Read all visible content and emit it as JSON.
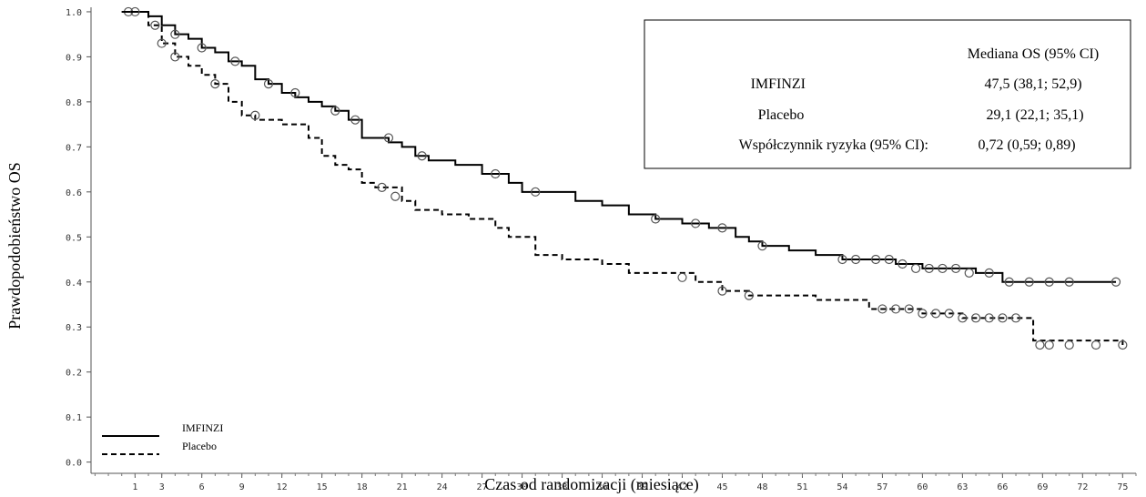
{
  "chart_data": {
    "type": "step",
    "ylabel": "Prawdopodobieństwo OS",
    "xlabel": "Czas od randomizacji (miesiące)",
    "xlim": [
      -2.3,
      76
    ],
    "ylim": [
      -0.025,
      1.01
    ],
    "xticks": [
      1,
      3,
      6,
      9,
      12,
      15,
      18,
      21,
      24,
      27,
      30,
      33,
      36,
      39,
      42,
      45,
      48,
      51,
      54,
      57,
      60,
      63,
      66,
      69,
      72,
      75
    ],
    "yticks": [
      {
        "value": 0,
        "label": "0.0"
      },
      0.1,
      0.2,
      0.3,
      0.4,
      0.5,
      0.6,
      0.7,
      0.8,
      0.9,
      {
        "value": 1,
        "label": "1.0"
      }
    ],
    "series": [
      {
        "name": "IMFINZI",
        "color": "#000000",
        "dash": "none",
        "x": [
          0,
          2,
          3,
          4,
          5,
          6,
          7,
          8,
          9,
          10,
          11,
          12,
          13,
          14,
          15,
          16,
          17,
          18,
          19,
          20,
          21,
          22,
          23,
          25,
          27,
          29,
          30,
          32,
          34,
          36,
          38,
          40,
          42,
          44,
          46,
          47,
          48,
          50,
          52,
          54,
          57,
          58,
          60,
          64,
          66,
          74.5
        ],
        "values": [
          1.0,
          0.99,
          0.97,
          0.95,
          0.94,
          0.92,
          0.91,
          0.89,
          0.88,
          0.85,
          0.84,
          0.82,
          0.81,
          0.8,
          0.79,
          0.78,
          0.76,
          0.72,
          0.72,
          0.71,
          0.7,
          0.68,
          0.67,
          0.66,
          0.64,
          0.62,
          0.6,
          0.6,
          0.58,
          0.57,
          0.55,
          0.54,
          0.53,
          0.52,
          0.5,
          0.49,
          0.48,
          0.47,
          0.46,
          0.45,
          0.45,
          0.44,
          0.43,
          0.42,
          0.4,
          0.4
        ],
        "censor_x": [
          0.5,
          1,
          4,
          6,
          8.5,
          11,
          13,
          16,
          17.5,
          20,
          22.5,
          28,
          31,
          40,
          43,
          45,
          48,
          54,
          55,
          56.5,
          57.5,
          58.5,
          59.5,
          60.5,
          61.5,
          62.5,
          63.5,
          65,
          66.5,
          68,
          69.5,
          71,
          74.5
        ],
        "censor_values": [
          1.0,
          1.0,
          0.95,
          0.92,
          0.89,
          0.84,
          0.82,
          0.78,
          0.76,
          0.72,
          0.68,
          0.64,
          0.6,
          0.54,
          0.53,
          0.52,
          0.48,
          0.45,
          0.45,
          0.45,
          0.45,
          0.44,
          0.43,
          0.43,
          0.43,
          0.43,
          0.42,
          0.42,
          0.4,
          0.4,
          0.4,
          0.4,
          0.4
        ]
      },
      {
        "name": "Placebo",
        "color": "#000000",
        "dash": "6,4",
        "x": [
          0,
          2,
          3,
          4,
          5,
          6,
          7,
          8,
          9,
          10,
          12,
          14,
          15,
          16,
          17,
          18,
          19,
          21,
          22,
          24,
          26,
          28,
          29,
          31,
          33,
          36,
          38,
          41,
          43,
          45,
          47,
          52,
          56,
          60,
          63,
          68,
          68.3,
          75
        ],
        "values": [
          1.0,
          0.97,
          0.93,
          0.9,
          0.88,
          0.86,
          0.84,
          0.8,
          0.77,
          0.76,
          0.75,
          0.72,
          0.68,
          0.66,
          0.65,
          0.62,
          0.61,
          0.58,
          0.56,
          0.55,
          0.54,
          0.52,
          0.5,
          0.46,
          0.45,
          0.44,
          0.42,
          0.42,
          0.4,
          0.38,
          0.37,
          0.36,
          0.34,
          0.33,
          0.32,
          0.32,
          0.27,
          0.26
        ],
        "censor_x": [
          2.5,
          3,
          4,
          7,
          10,
          19.5,
          20.5,
          42,
          45,
          47,
          57,
          58,
          59,
          60,
          61,
          62,
          63,
          64,
          65,
          66,
          67,
          68.8,
          69.5,
          71,
          73,
          75
        ],
        "censor_values": [
          0.97,
          0.93,
          0.9,
          0.84,
          0.77,
          0.61,
          0.59,
          0.41,
          0.38,
          0.37,
          0.34,
          0.34,
          0.34,
          0.33,
          0.33,
          0.33,
          0.32,
          0.32,
          0.32,
          0.32,
          0.32,
          0.26,
          0.26,
          0.26,
          0.26,
          0.26
        ]
      }
    ],
    "summary": {
      "header": "Mediana OS (95% CI)",
      "rows": [
        [
          "IMFINZI",
          "47,5 (38,1; 52,9)"
        ],
        [
          "Placebo",
          "29,1 (22,1; 35,1)"
        ],
        [
          "Współczynnik ryzyka (95% CI):",
          "0,72 (0,59; 0,89)"
        ]
      ]
    }
  }
}
